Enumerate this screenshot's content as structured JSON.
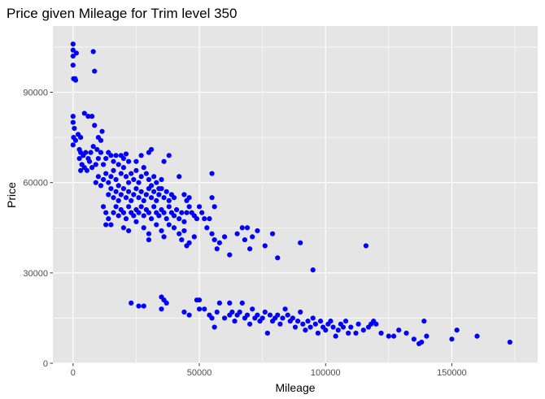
{
  "chart_data": {
    "type": "scatter",
    "title": "Price given Mileage for Trim level 350",
    "xlabel": "Mileage",
    "ylabel": "Price",
    "xlim": [
      -8000,
      184000
    ],
    "ylim": [
      0,
      112000
    ],
    "x_ticks": [
      0,
      50000,
      100000,
      150000
    ],
    "x_tick_labels": [
      "0",
      "50000",
      "100000",
      "150000"
    ],
    "y_ticks": [
      0,
      30000,
      60000,
      90000
    ],
    "y_tick_labels": [
      "0",
      "30000",
      "60000",
      "90000"
    ],
    "grid": true,
    "legend": "none",
    "point_color": "#0000FF",
    "panel_color": "#E5E5E5",
    "grid_color": "#FFFFFF",
    "series": [
      {
        "points": [
          [
            0,
            106000
          ],
          [
            0,
            104000
          ],
          [
            0,
            102000
          ],
          [
            0,
            99000
          ],
          [
            200,
            94500
          ],
          [
            800,
            94500
          ],
          [
            1000,
            94000
          ],
          [
            1300,
            103000
          ],
          [
            8000,
            103500
          ],
          [
            8500,
            97000
          ],
          [
            0,
            82000
          ],
          [
            0,
            80000
          ],
          [
            500,
            78000
          ],
          [
            200,
            75000
          ],
          [
            1000,
            74000
          ],
          [
            0,
            72500
          ],
          [
            2000,
            76000
          ],
          [
            3000,
            75000
          ],
          [
            4500,
            83000
          ],
          [
            6000,
            82000
          ],
          [
            7500,
            82000
          ],
          [
            8500,
            79000
          ],
          [
            10000,
            75000
          ],
          [
            11500,
            77000
          ],
          [
            11000,
            74000
          ],
          [
            2500,
            71000
          ],
          [
            3000,
            70000
          ],
          [
            4000,
            69000
          ],
          [
            5000,
            70000
          ],
          [
            6000,
            68000
          ],
          [
            7000,
            70000
          ],
          [
            8000,
            72000
          ],
          [
            2500,
            68000
          ],
          [
            3500,
            66000
          ],
          [
            4500,
            65000
          ],
          [
            5500,
            64000
          ],
          [
            3000,
            64000
          ],
          [
            6500,
            67000
          ],
          [
            7500,
            65000
          ],
          [
            9000,
            66000
          ],
          [
            10000,
            68000
          ],
          [
            11000,
            70000
          ],
          [
            9500,
            71000
          ],
          [
            12000,
            66000
          ],
          [
            13000,
            68000
          ],
          [
            14000,
            70000
          ],
          [
            15000,
            69000
          ],
          [
            16000,
            67000
          ],
          [
            17000,
            69000
          ],
          [
            18000,
            66000
          ],
          [
            19000,
            69000
          ],
          [
            20000,
            68000
          ],
          [
            21000,
            69500
          ],
          [
            22000,
            67000
          ],
          [
            9000,
            60000
          ],
          [
            10000,
            62000
          ],
          [
            11000,
            59000
          ],
          [
            12000,
            61000
          ],
          [
            13000,
            63000
          ],
          [
            14000,
            60000
          ],
          [
            15000,
            62000
          ],
          [
            16000,
            64000
          ],
          [
            17000,
            61000
          ],
          [
            18000,
            59000
          ],
          [
            19000,
            63000
          ],
          [
            20000,
            65000
          ],
          [
            21000,
            62000
          ],
          [
            22000,
            60000
          ],
          [
            23000,
            63000
          ],
          [
            24000,
            61000
          ],
          [
            25000,
            64000
          ],
          [
            26000,
            60000
          ],
          [
            27000,
            62000
          ],
          [
            28000,
            65000
          ],
          [
            29000,
            63000
          ],
          [
            30000,
            61000
          ],
          [
            31000,
            59000
          ],
          [
            32000,
            62000
          ],
          [
            33000,
            60000
          ],
          [
            34000,
            58000
          ],
          [
            35000,
            61000
          ],
          [
            36000,
            67000
          ],
          [
            38000,
            69000
          ],
          [
            30000,
            70000
          ],
          [
            31000,
            71000
          ],
          [
            27000,
            69000
          ],
          [
            25000,
            67000
          ],
          [
            14000,
            56000
          ],
          [
            15000,
            58000
          ],
          [
            16000,
            55000
          ],
          [
            17000,
            57000
          ],
          [
            18000,
            54000
          ],
          [
            19000,
            56000
          ],
          [
            20000,
            58000
          ],
          [
            21000,
            55000
          ],
          [
            22000,
            57000
          ],
          [
            23000,
            54000
          ],
          [
            24000,
            56000
          ],
          [
            25000,
            58000
          ],
          [
            26000,
            55000
          ],
          [
            27000,
            57000
          ],
          [
            28000,
            54000
          ],
          [
            29000,
            56000
          ],
          [
            30000,
            58000
          ],
          [
            31000,
            55000
          ],
          [
            32000,
            57000
          ],
          [
            33000,
            54000
          ],
          [
            34000,
            56000
          ],
          [
            35000,
            58000
          ],
          [
            36000,
            55000
          ],
          [
            37000,
            57000
          ],
          [
            38000,
            54000
          ],
          [
            39000,
            56000
          ],
          [
            40000,
            55000
          ],
          [
            42000,
            62000
          ],
          [
            44000,
            56000
          ],
          [
            45000,
            54000
          ],
          [
            46000,
            55000
          ],
          [
            12000,
            52000
          ],
          [
            13000,
            50000
          ],
          [
            14000,
            48000
          ],
          [
            15000,
            46000
          ],
          [
            16000,
            50000
          ],
          [
            17000,
            52000
          ],
          [
            18000,
            49000
          ],
          [
            19000,
            51000
          ],
          [
            20000,
            50000
          ],
          [
            21000,
            48000
          ],
          [
            22000,
            52000
          ],
          [
            23000,
            50000
          ],
          [
            24000,
            49000
          ],
          [
            25000,
            51000
          ],
          [
            26000,
            50000
          ],
          [
            27000,
            52000
          ],
          [
            28000,
            49000
          ],
          [
            29000,
            51000
          ],
          [
            30000,
            50000
          ],
          [
            31000,
            48000
          ],
          [
            32000,
            52000
          ],
          [
            33000,
            50000
          ],
          [
            34000,
            49000
          ],
          [
            35000,
            51000
          ],
          [
            36000,
            50000
          ],
          [
            37000,
            48000
          ],
          [
            38000,
            52000
          ],
          [
            39000,
            50000
          ],
          [
            40000,
            49000
          ],
          [
            41000,
            51000
          ],
          [
            42000,
            48000
          ],
          [
            43000,
            50000
          ],
          [
            44000,
            47000
          ],
          [
            45000,
            50000
          ],
          [
            46000,
            52000
          ],
          [
            47000,
            50000
          ],
          [
            48000,
            49000
          ],
          [
            49000,
            48000
          ],
          [
            50000,
            52000
          ],
          [
            51000,
            50000
          ],
          [
            52000,
            48000
          ],
          [
            13000,
            46000
          ],
          [
            20000,
            45000
          ],
          [
            22000,
            44000
          ],
          [
            25000,
            47000
          ],
          [
            28000,
            45000
          ],
          [
            30000,
            43000
          ],
          [
            33000,
            46000
          ],
          [
            35000,
            44000
          ],
          [
            38000,
            46000
          ],
          [
            40000,
            45000
          ],
          [
            42000,
            43000
          ],
          [
            44000,
            44000
          ],
          [
            46000,
            40000
          ],
          [
            48000,
            42000
          ],
          [
            30000,
            41000
          ],
          [
            36000,
            42000
          ],
          [
            43000,
            41000
          ],
          [
            45000,
            39000
          ],
          [
            55000,
            63000
          ],
          [
            55000,
            55000
          ],
          [
            56000,
            52000
          ],
          [
            54000,
            48000
          ],
          [
            53000,
            45000
          ],
          [
            55000,
            43000
          ],
          [
            56000,
            41000
          ],
          [
            58000,
            40000
          ],
          [
            60000,
            42000
          ],
          [
            62000,
            36000
          ],
          [
            57000,
            38000
          ],
          [
            65000,
            43000
          ],
          [
            67000,
            45000
          ],
          [
            69000,
            45000
          ],
          [
            71000,
            42000
          ],
          [
            73000,
            44000
          ],
          [
            68000,
            41000
          ],
          [
            70000,
            38000
          ],
          [
            76000,
            39000
          ],
          [
            79000,
            43000
          ],
          [
            81000,
            35000
          ],
          [
            90000,
            40000
          ],
          [
            95000,
            31000
          ],
          [
            116000,
            39000
          ],
          [
            23000,
            20000
          ],
          [
            26000,
            19000
          ],
          [
            28000,
            19000
          ],
          [
            35000,
            22000
          ],
          [
            36000,
            21000
          ],
          [
            35000,
            18000
          ],
          [
            37000,
            20000
          ],
          [
            44000,
            17000
          ],
          [
            46000,
            16000
          ],
          [
            49000,
            21000
          ],
          [
            50000,
            21000
          ],
          [
            50000,
            18000
          ],
          [
            52000,
            18000
          ],
          [
            54000,
            16000
          ],
          [
            55000,
            15000
          ],
          [
            56000,
            12000
          ],
          [
            57000,
            17000
          ],
          [
            58000,
            20000
          ],
          [
            60000,
            15000
          ],
          [
            62000,
            16000
          ],
          [
            62000,
            20000
          ],
          [
            63000,
            17000
          ],
          [
            64000,
            14000
          ],
          [
            65000,
            16000
          ],
          [
            66000,
            17000
          ],
          [
            67000,
            20000
          ],
          [
            68000,
            15000
          ],
          [
            69000,
            16000
          ],
          [
            70000,
            13000
          ],
          [
            71000,
            18000
          ],
          [
            72000,
            15000
          ],
          [
            73000,
            16000
          ],
          [
            74000,
            14000
          ],
          [
            75000,
            15000
          ],
          [
            76000,
            17000
          ],
          [
            77000,
            10000
          ],
          [
            78000,
            16000
          ],
          [
            79000,
            14000
          ],
          [
            80000,
            15000
          ],
          [
            81000,
            16000
          ],
          [
            82000,
            13000
          ],
          [
            83000,
            15000
          ],
          [
            84000,
            18000
          ],
          [
            85000,
            16000
          ],
          [
            86000,
            14000
          ],
          [
            87000,
            15000
          ],
          [
            88000,
            12000
          ],
          [
            89000,
            14000
          ],
          [
            90000,
            17000
          ],
          [
            91000,
            13000
          ],
          [
            92000,
            11000
          ],
          [
            93000,
            14000
          ],
          [
            94000,
            12000
          ],
          [
            95000,
            15000
          ],
          [
            96000,
            13000
          ],
          [
            97000,
            10000
          ],
          [
            98000,
            14000
          ],
          [
            99000,
            12000
          ],
          [
            100000,
            11000
          ],
          [
            101000,
            13000
          ],
          [
            102000,
            14000
          ],
          [
            103000,
            12000
          ],
          [
            104000,
            9000
          ],
          [
            105000,
            11000
          ],
          [
            106000,
            13000
          ],
          [
            107000,
            12000
          ],
          [
            108000,
            14000
          ],
          [
            109000,
            10000
          ],
          [
            110000,
            12000
          ],
          [
            112000,
            10000
          ],
          [
            113000,
            13000
          ],
          [
            115000,
            11000
          ],
          [
            117000,
            12000
          ],
          [
            118000,
            13000
          ],
          [
            119000,
            14000
          ],
          [
            120000,
            13000
          ],
          [
            122000,
            10000
          ],
          [
            125000,
            9000
          ],
          [
            127000,
            9000
          ],
          [
            129000,
            11000
          ],
          [
            132000,
            10000
          ],
          [
            135000,
            8000
          ],
          [
            137000,
            6500
          ],
          [
            138000,
            7000
          ],
          [
            139000,
            14000
          ],
          [
            140000,
            9000
          ],
          [
            150000,
            8000
          ],
          [
            152000,
            11000
          ],
          [
            160000,
            9000
          ],
          [
            173000,
            7000
          ]
        ]
      }
    ]
  }
}
